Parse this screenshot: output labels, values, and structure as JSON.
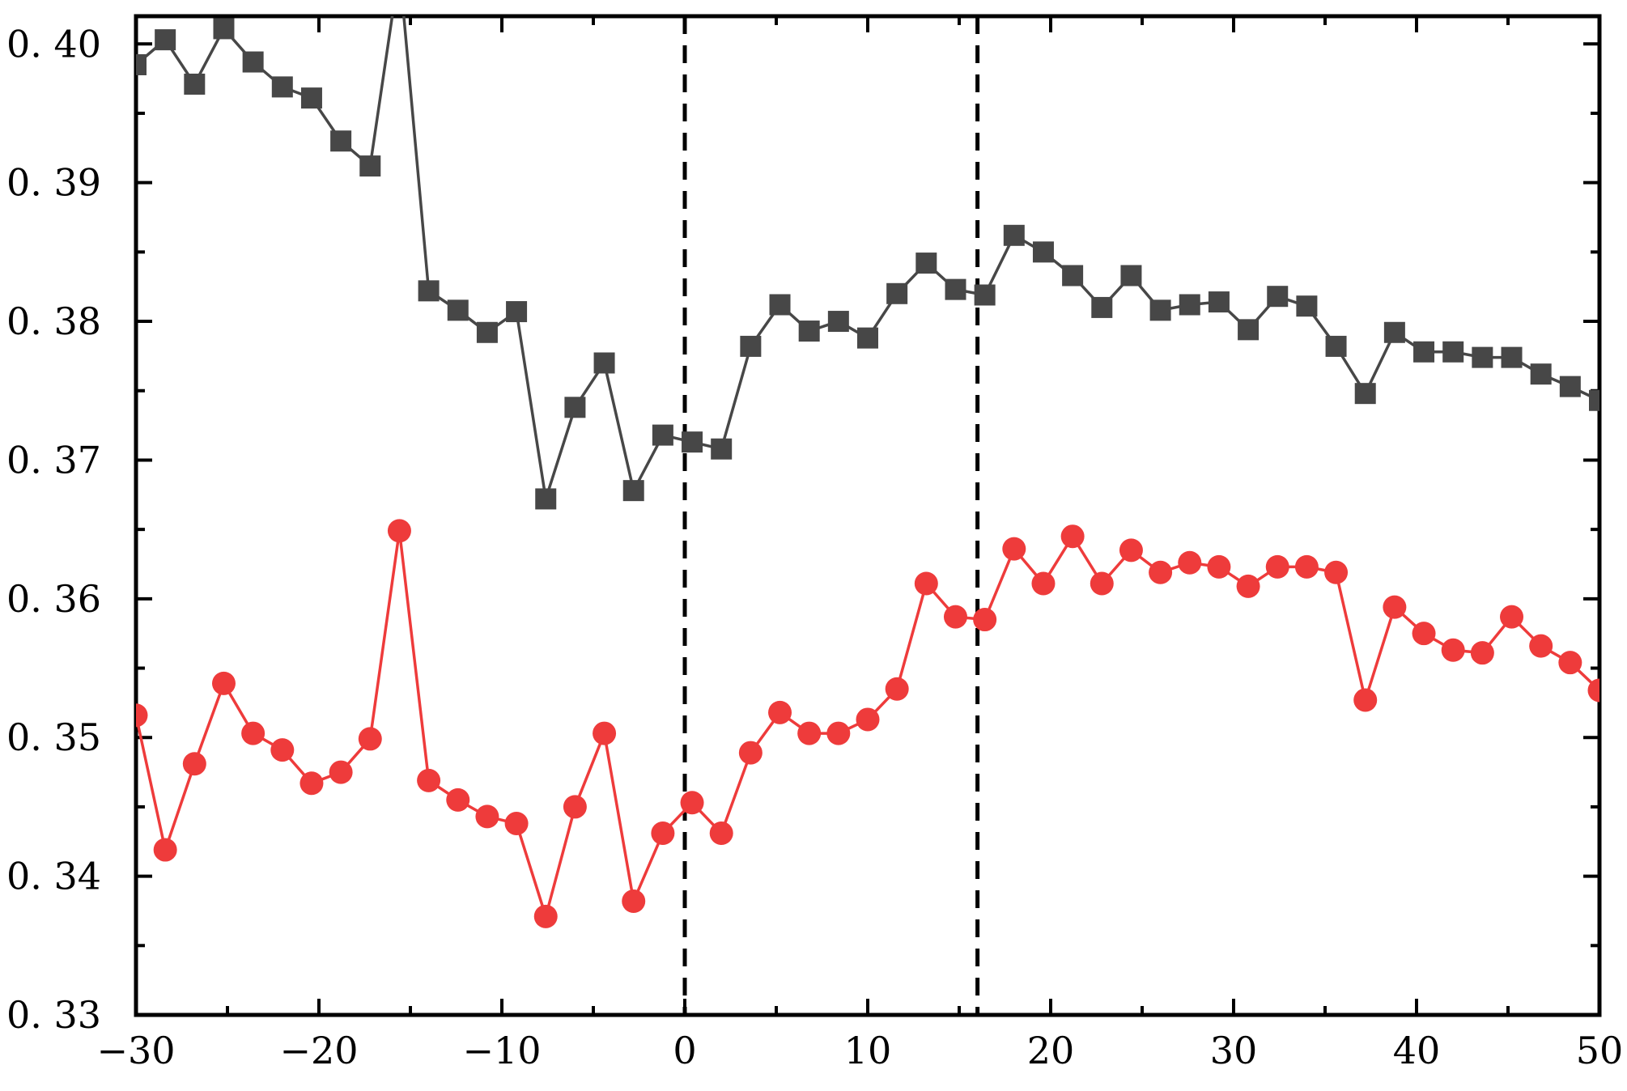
{
  "chart_data": {
    "type": "line",
    "title": "",
    "xlabel": "",
    "ylabel": "",
    "xlim": [
      -30,
      50
    ],
    "ylim": [
      0.33,
      0.402
    ],
    "x_ticks": [
      -30,
      -20,
      -10,
      0,
      10,
      20,
      30,
      40,
      50
    ],
    "x_tick_labels": [
      "−30",
      "−20",
      "−10",
      "0",
      "10",
      "20",
      "30",
      "40",
      "50"
    ],
    "y_ticks": [
      0.33,
      0.34,
      0.35,
      0.36,
      0.37,
      0.38,
      0.39,
      0.4
    ],
    "y_tick_labels": [
      "0. 33",
      "0. 34",
      "0. 35",
      "0. 36",
      "0. 37",
      "0. 38",
      "0. 39",
      "0. 40"
    ],
    "grid": false,
    "legend": "none",
    "vlines": [
      0,
      16
    ],
    "x": [
      -30,
      -28.4,
      -26.8,
      -25.2,
      -23.6,
      -22,
      -20.4,
      -18.8,
      -17.2,
      -15.6,
      -14,
      -12.4,
      -10.8,
      -9.2,
      -7.6,
      -6,
      -4.4,
      -2.8,
      -1.2,
      0.4,
      2,
      3.6,
      5.2,
      6.8,
      8.4,
      10,
      11.6,
      13.2,
      14.8,
      16.4,
      18,
      19.6,
      21.2,
      22.8,
      24.4,
      26,
      27.6,
      29.2,
      30.8,
      32.4,
      34,
      35.6,
      37.2,
      38.8,
      40.4,
      42,
      43.6,
      45.2,
      46.8,
      48.4,
      50
    ],
    "series": [
      {
        "marker": "square",
        "color": "#474747",
        "values": [
          0.3985,
          0.4003,
          0.3971,
          0.4011,
          0.3987,
          0.3969,
          0.3961,
          0.393,
          0.3912,
          0.4055,
          0.3822,
          0.3808,
          0.3792,
          0.3807,
          0.3672,
          0.3738,
          0.377,
          0.3678,
          0.3718,
          0.3713,
          0.3708,
          0.3782,
          0.3812,
          0.3793,
          0.38,
          0.3788,
          0.382,
          0.3842,
          0.3823,
          0.3819,
          0.3862,
          0.385,
          0.3833,
          0.381,
          0.3833,
          0.3808,
          0.3812,
          0.3814,
          0.3794,
          0.3818,
          0.3811,
          0.3782,
          0.3748,
          0.3792,
          0.3778,
          0.3778,
          0.3774,
          0.3774,
          0.3762,
          0.3753,
          0.3743
        ]
      },
      {
        "marker": "circle",
        "color": "#ee3b3b",
        "values": [
          0.3516,
          0.3419,
          0.3481,
          0.3539,
          0.3503,
          0.3491,
          0.3467,
          0.3475,
          0.3499,
          0.3649,
          0.3469,
          0.3455,
          0.3443,
          0.3438,
          0.3371,
          0.345,
          0.3503,
          0.3382,
          0.3431,
          0.3453,
          0.3431,
          0.3489,
          0.3518,
          0.3503,
          0.3503,
          0.3513,
          0.3535,
          0.3611,
          0.3587,
          0.3585,
          0.3636,
          0.3611,
          0.3645,
          0.3611,
          0.3635,
          0.3619,
          0.3626,
          0.3623,
          0.3609,
          0.3623,
          0.3623,
          0.3619,
          0.3527,
          0.3594,
          0.3575,
          0.3563,
          0.3561,
          0.3587,
          0.3566,
          0.3554,
          0.3534
        ]
      }
    ]
  }
}
